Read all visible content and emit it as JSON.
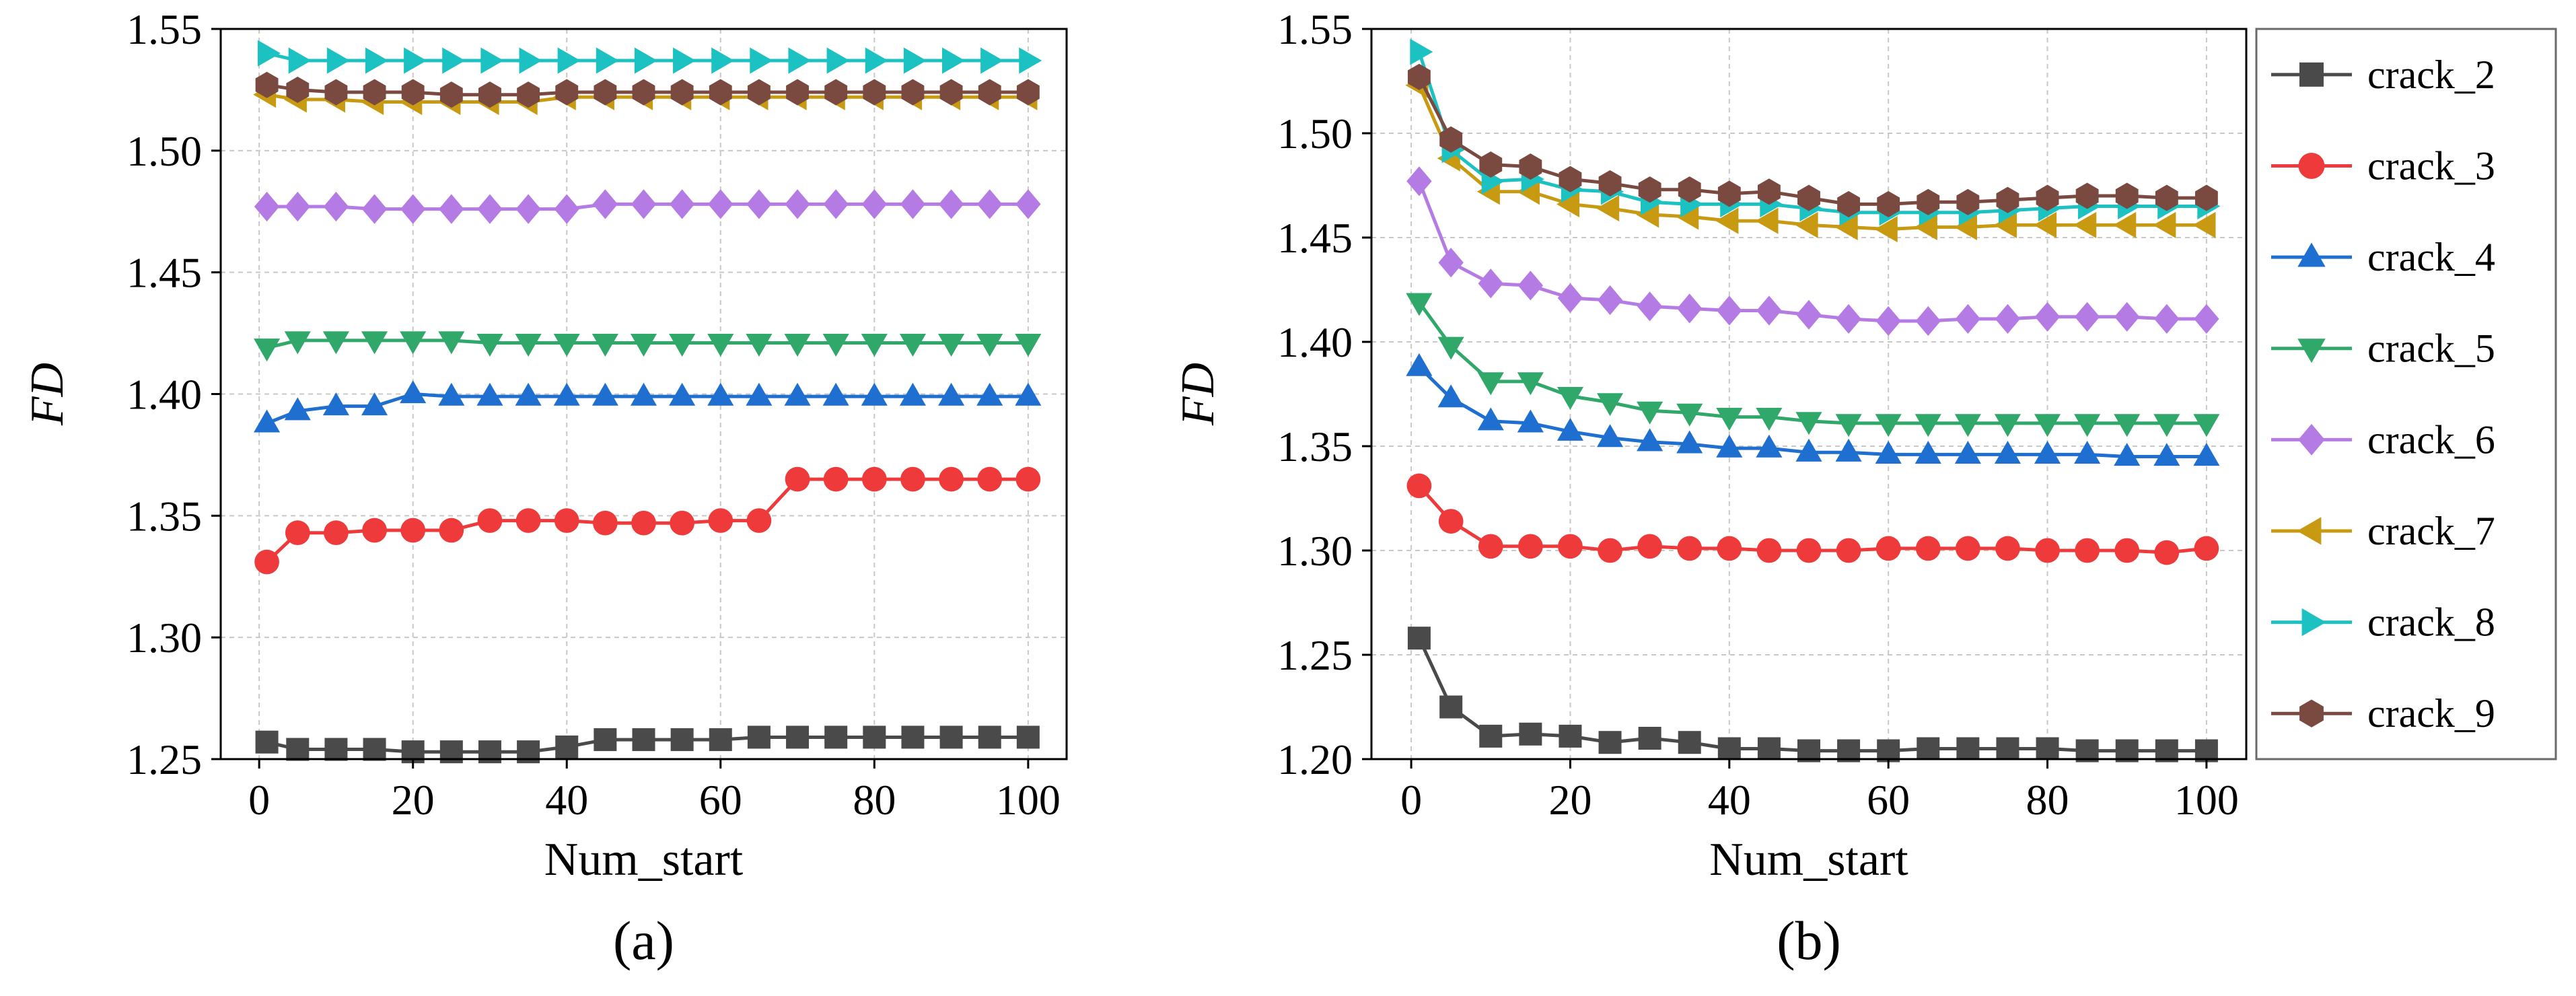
{
  "chart_data": [
    {
      "type": "line",
      "panel_label": "(a)",
      "xlabel": "Num_start",
      "ylabel": "FD",
      "xlim": [
        -5,
        105
      ],
      "ylim": [
        1.25,
        1.55
      ],
      "xticks": [
        0,
        20,
        40,
        60,
        80,
        100
      ],
      "xtick_labels": [
        "0",
        "20",
        "40",
        "60",
        "80",
        "100"
      ],
      "yticks": [
        1.25,
        1.3,
        1.35,
        1.4,
        1.45,
        1.5,
        1.55
      ],
      "ytick_labels": [
        "1.25",
        "1.30",
        "1.35",
        "1.40",
        "1.45",
        "1.50",
        "1.55"
      ],
      "grid": true,
      "x": [
        1,
        5,
        10,
        15,
        20,
        25,
        30,
        35,
        40,
        45,
        50,
        55,
        60,
        65,
        70,
        75,
        80,
        85,
        90,
        95,
        100
      ],
      "series": [
        {
          "name": "crack_2",
          "values": [
            1.257,
            1.254,
            1.254,
            1.254,
            1.253,
            1.253,
            1.253,
            1.253,
            1.255,
            1.258,
            1.258,
            1.258,
            1.258,
            1.259,
            1.259,
            1.259,
            1.259,
            1.259,
            1.259,
            1.259,
            1.259
          ]
        },
        {
          "name": "crack_3",
          "values": [
            1.331,
            1.343,
            1.343,
            1.344,
            1.344,
            1.344,
            1.348,
            1.348,
            1.348,
            1.347,
            1.347,
            1.347,
            1.348,
            1.348,
            1.365,
            1.365,
            1.365,
            1.365,
            1.365,
            1.365,
            1.365
          ]
        },
        {
          "name": "crack_4",
          "values": [
            1.388,
            1.393,
            1.395,
            1.395,
            1.4,
            1.399,
            1.399,
            1.399,
            1.399,
            1.399,
            1.399,
            1.399,
            1.399,
            1.399,
            1.399,
            1.399,
            1.399,
            1.399,
            1.399,
            1.399,
            1.399
          ]
        },
        {
          "name": "crack_5",
          "values": [
            1.419,
            1.422,
            1.422,
            1.422,
            1.422,
            1.422,
            1.421,
            1.421,
            1.421,
            1.421,
            1.421,
            1.421,
            1.421,
            1.421,
            1.421,
            1.421,
            1.421,
            1.421,
            1.421,
            1.421,
            1.421
          ]
        },
        {
          "name": "crack_6",
          "values": [
            1.477,
            1.477,
            1.477,
            1.476,
            1.476,
            1.476,
            1.476,
            1.476,
            1.476,
            1.478,
            1.478,
            1.478,
            1.478,
            1.478,
            1.478,
            1.478,
            1.478,
            1.478,
            1.478,
            1.478,
            1.478
          ]
        },
        {
          "name": "crack_7",
          "values": [
            1.523,
            1.521,
            1.521,
            1.52,
            1.52,
            1.52,
            1.52,
            1.52,
            1.522,
            1.522,
            1.522,
            1.522,
            1.522,
            1.522,
            1.522,
            1.522,
            1.522,
            1.522,
            1.522,
            1.522,
            1.522
          ]
        },
        {
          "name": "crack_8",
          "values": [
            1.54,
            1.537,
            1.537,
            1.537,
            1.537,
            1.537,
            1.537,
            1.537,
            1.537,
            1.537,
            1.537,
            1.537,
            1.537,
            1.537,
            1.537,
            1.537,
            1.537,
            1.537,
            1.537,
            1.537,
            1.537
          ]
        },
        {
          "name": "crack_9",
          "values": [
            1.527,
            1.525,
            1.524,
            1.524,
            1.524,
            1.523,
            1.523,
            1.523,
            1.524,
            1.524,
            1.524,
            1.524,
            1.524,
            1.524,
            1.524,
            1.524,
            1.524,
            1.524,
            1.524,
            1.524,
            1.524
          ]
        }
      ]
    },
    {
      "type": "line",
      "panel_label": "(b)",
      "xlabel": "Num_start",
      "ylabel": "FD",
      "xlim": [
        -5,
        105
      ],
      "ylim": [
        1.2,
        1.55
      ],
      "xticks": [
        0,
        20,
        40,
        60,
        80,
        100
      ],
      "xtick_labels": [
        "0",
        "20",
        "40",
        "60",
        "80",
        "100"
      ],
      "yticks": [
        1.2,
        1.25,
        1.3,
        1.35,
        1.4,
        1.45,
        1.5,
        1.55
      ],
      "ytick_labels": [
        "1.20",
        "1.25",
        "1.30",
        "1.35",
        "1.40",
        "1.45",
        "1.50",
        "1.55"
      ],
      "grid": true,
      "legend_position": "outside-right",
      "x": [
        1,
        5,
        10,
        15,
        20,
        25,
        30,
        35,
        40,
        45,
        50,
        55,
        60,
        65,
        70,
        75,
        80,
        85,
        90,
        95,
        100
      ],
      "series": [
        {
          "name": "crack_2",
          "values": [
            1.258,
            1.225,
            1.211,
            1.212,
            1.211,
            1.208,
            1.21,
            1.208,
            1.205,
            1.205,
            1.204,
            1.204,
            1.204,
            1.205,
            1.205,
            1.205,
            1.205,
            1.204,
            1.204,
            1.204,
            1.204
          ]
        },
        {
          "name": "crack_3",
          "values": [
            1.331,
            1.314,
            1.302,
            1.302,
            1.302,
            1.3,
            1.302,
            1.301,
            1.301,
            1.3,
            1.3,
            1.3,
            1.301,
            1.301,
            1.301,
            1.301,
            1.3,
            1.3,
            1.3,
            1.299,
            1.301
          ]
        },
        {
          "name": "crack_4",
          "values": [
            1.388,
            1.373,
            1.362,
            1.361,
            1.357,
            1.354,
            1.352,
            1.351,
            1.349,
            1.349,
            1.347,
            1.347,
            1.346,
            1.346,
            1.346,
            1.346,
            1.346,
            1.346,
            1.345,
            1.345,
            1.345
          ]
        },
        {
          "name": "crack_5",
          "values": [
            1.419,
            1.398,
            1.381,
            1.381,
            1.374,
            1.371,
            1.367,
            1.366,
            1.364,
            1.364,
            1.362,
            1.361,
            1.361,
            1.361,
            1.361,
            1.361,
            1.361,
            1.361,
            1.361,
            1.361,
            1.361
          ]
        },
        {
          "name": "crack_6",
          "values": [
            1.477,
            1.438,
            1.428,
            1.427,
            1.421,
            1.42,
            1.417,
            1.416,
            1.415,
            1.415,
            1.413,
            1.411,
            1.41,
            1.41,
            1.411,
            1.411,
            1.412,
            1.412,
            1.412,
            1.411,
            1.411
          ]
        },
        {
          "name": "crack_7",
          "values": [
            1.523,
            1.488,
            1.472,
            1.472,
            1.466,
            1.464,
            1.461,
            1.46,
            1.458,
            1.458,
            1.456,
            1.455,
            1.454,
            1.455,
            1.455,
            1.456,
            1.456,
            1.456,
            1.456,
            1.456,
            1.456
          ]
        },
        {
          "name": "crack_8",
          "values": [
            1.539,
            1.492,
            1.477,
            1.478,
            1.473,
            1.472,
            1.467,
            1.466,
            1.466,
            1.466,
            1.464,
            1.462,
            1.462,
            1.462,
            1.462,
            1.463,
            1.464,
            1.465,
            1.465,
            1.465,
            1.465
          ]
        },
        {
          "name": "crack_9",
          "values": [
            1.527,
            1.497,
            1.485,
            1.484,
            1.478,
            1.476,
            1.473,
            1.473,
            1.471,
            1.472,
            1.469,
            1.466,
            1.466,
            1.467,
            1.467,
            1.468,
            1.469,
            1.47,
            1.47,
            1.469,
            1.469
          ]
        }
      ]
    }
  ],
  "series_styles": [
    {
      "name": "crack_2",
      "color": "#4a4a4a",
      "marker": "square"
    },
    {
      "name": "crack_3",
      "color": "#ee3a3a",
      "marker": "circle"
    },
    {
      "name": "crack_4",
      "color": "#1f6fd1",
      "marker": "triangle-up"
    },
    {
      "name": "crack_5",
      "color": "#2fa86a",
      "marker": "triangle-down"
    },
    {
      "name": "crack_6",
      "color": "#b57be4",
      "marker": "diamond"
    },
    {
      "name": "crack_7",
      "color": "#c89a12",
      "marker": "triangle-left"
    },
    {
      "name": "crack_8",
      "color": "#1cc2c2",
      "marker": "triangle-right"
    },
    {
      "name": "crack_9",
      "color": "#7a4a40",
      "marker": "hexagon"
    }
  ]
}
